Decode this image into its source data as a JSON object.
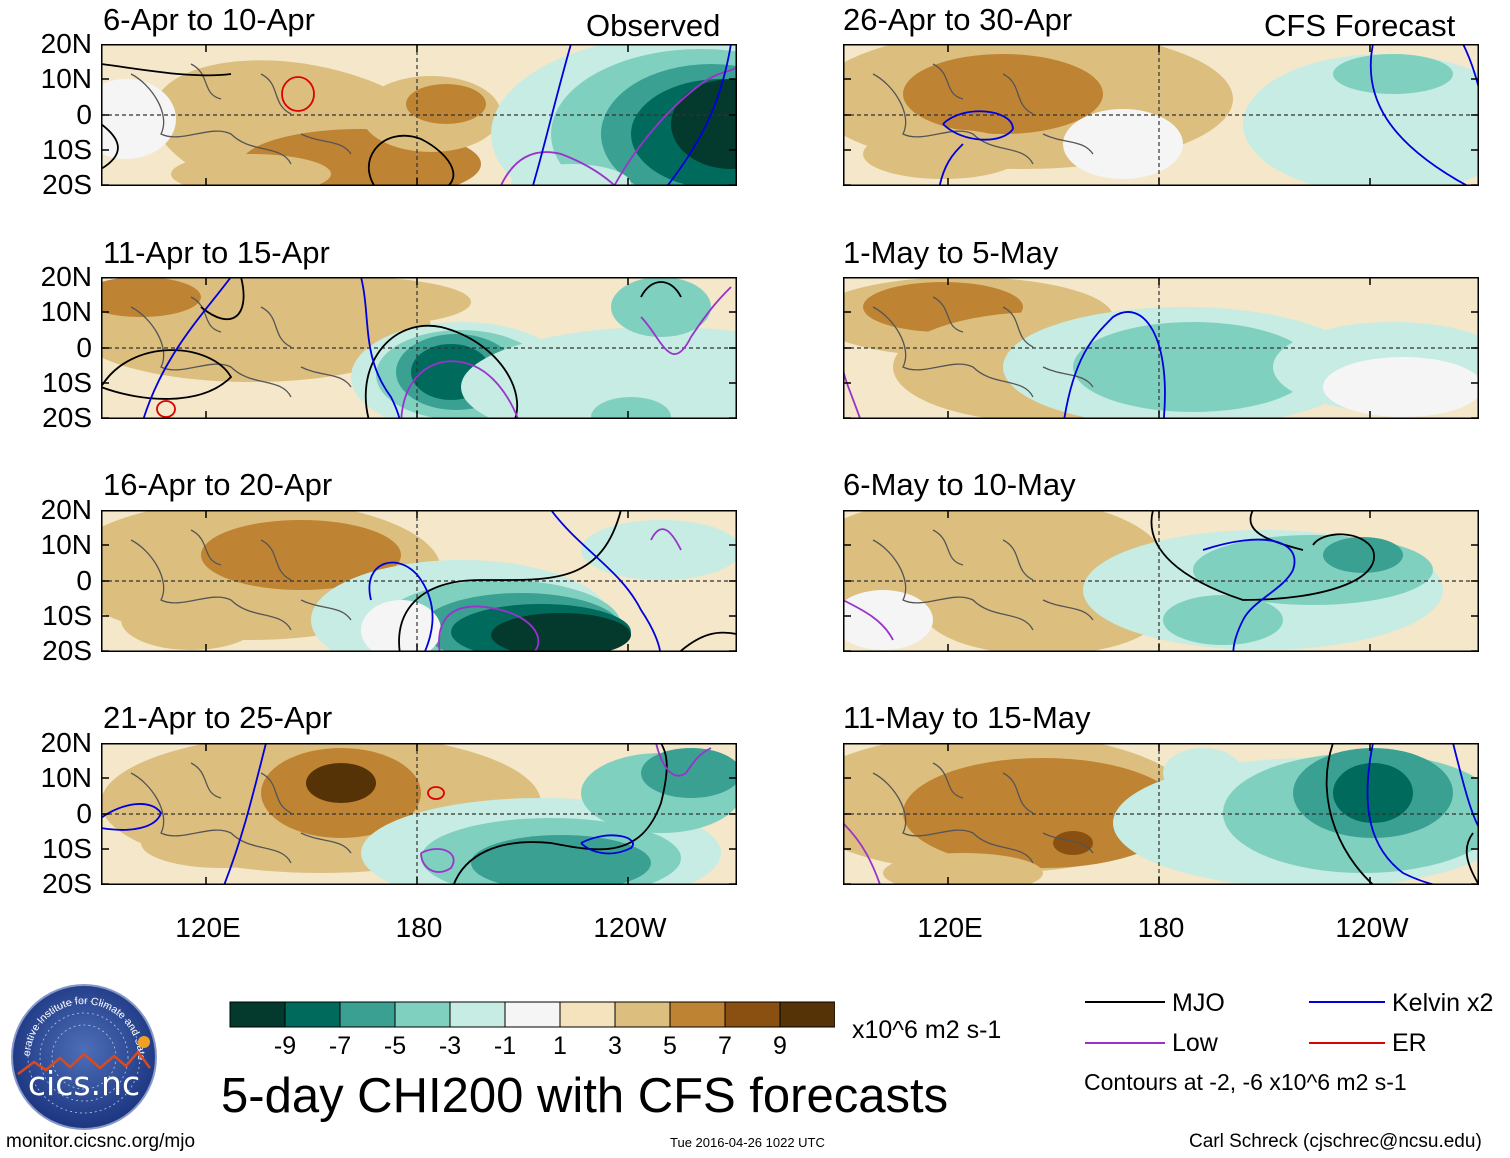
{
  "chart_data": {
    "type": "heatmap",
    "title": "5-day CHI200 with CFS forecasts",
    "colorbar": {
      "units": "x10^6 m2 s-1",
      "tick_labels": [
        "-9",
        "-7",
        "-5",
        "-3",
        "-1",
        "1",
        "3",
        "5",
        "7",
        "9"
      ],
      "bin_colors": [
        "#04392e",
        "#006b5c",
        "#39a092",
        "#80d0c0",
        "#c6ece3",
        "#f5f5f5",
        "#f4e3bd",
        "#dcbf7e",
        "#bf8334",
        "#8a5011",
        "#553307"
      ]
    },
    "lat_labels": [
      "20N",
      "10N",
      "0",
      "10S",
      "20S"
    ],
    "lon_labels": [
      "120E",
      "180",
      "120W"
    ],
    "column_headers": {
      "observed": "Observed",
      "forecast": "CFS Forecast"
    },
    "observed_panels": [
      {
        "title": "6-Apr to 10-Apr"
      },
      {
        "title": "11-Apr to 15-Apr"
      },
      {
        "title": "16-Apr to 20-Apr"
      },
      {
        "title": "21-Apr to 25-Apr"
      }
    ],
    "forecast_panels": [
      {
        "title": "26-Apr to 30-Apr"
      },
      {
        "title": "1-May to 5-May"
      },
      {
        "title": "6-May to 10-May"
      },
      {
        "title": "11-May to 15-May"
      }
    ],
    "legend": [
      {
        "label": "MJO",
        "color": "#000000"
      },
      {
        "label": "Kelvin x2",
        "color": "#0000dd"
      },
      {
        "label": "Low",
        "color": "#9933cc"
      },
      {
        "label": "ER",
        "color": "#dd0000"
      }
    ],
    "contour_note": "Contours at -2, -6 x10^6 m2 s-1"
  },
  "footer": {
    "left": "monitor.cicsnc.org/mjo",
    "center": "Tue 2016-04-26 1022 UTC",
    "right": "Carl Schreck (cjschrec@ncsu.edu)"
  },
  "logo": {
    "text": "cics.nc",
    "ring_text": "Cooperative Institute for Climate and Satellites"
  }
}
